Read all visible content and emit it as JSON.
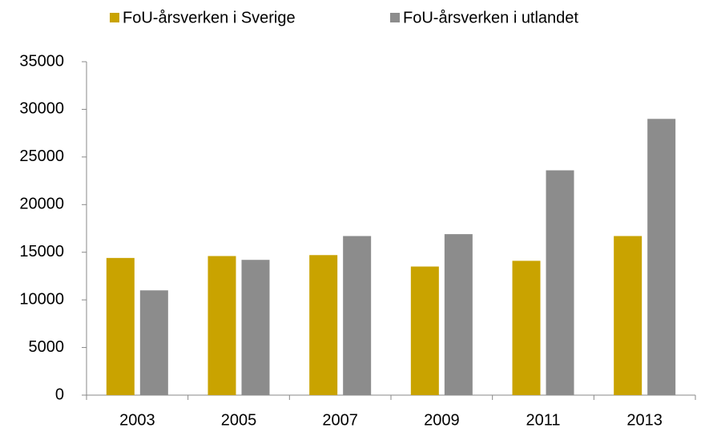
{
  "chart_data": {
    "type": "bar",
    "categories": [
      "2003",
      "2005",
      "2007",
      "2009",
      "2011",
      "2013"
    ],
    "series": [
      {
        "name": "FoU-årsverken i Sverige",
        "color": "#c9a300",
        "values": [
          14400,
          14600,
          14700,
          13500,
          14100,
          16700
        ]
      },
      {
        "name": "FoU-årsverken i utlandet",
        "color": "#8c8c8c",
        "values": [
          11000,
          14200,
          16700,
          16900,
          23600,
          29000
        ]
      }
    ],
    "ylim": [
      0,
      35000
    ],
    "yticks": [
      0,
      5000,
      10000,
      15000,
      20000,
      25000,
      30000,
      35000
    ],
    "grid": false,
    "legend": "top"
  }
}
